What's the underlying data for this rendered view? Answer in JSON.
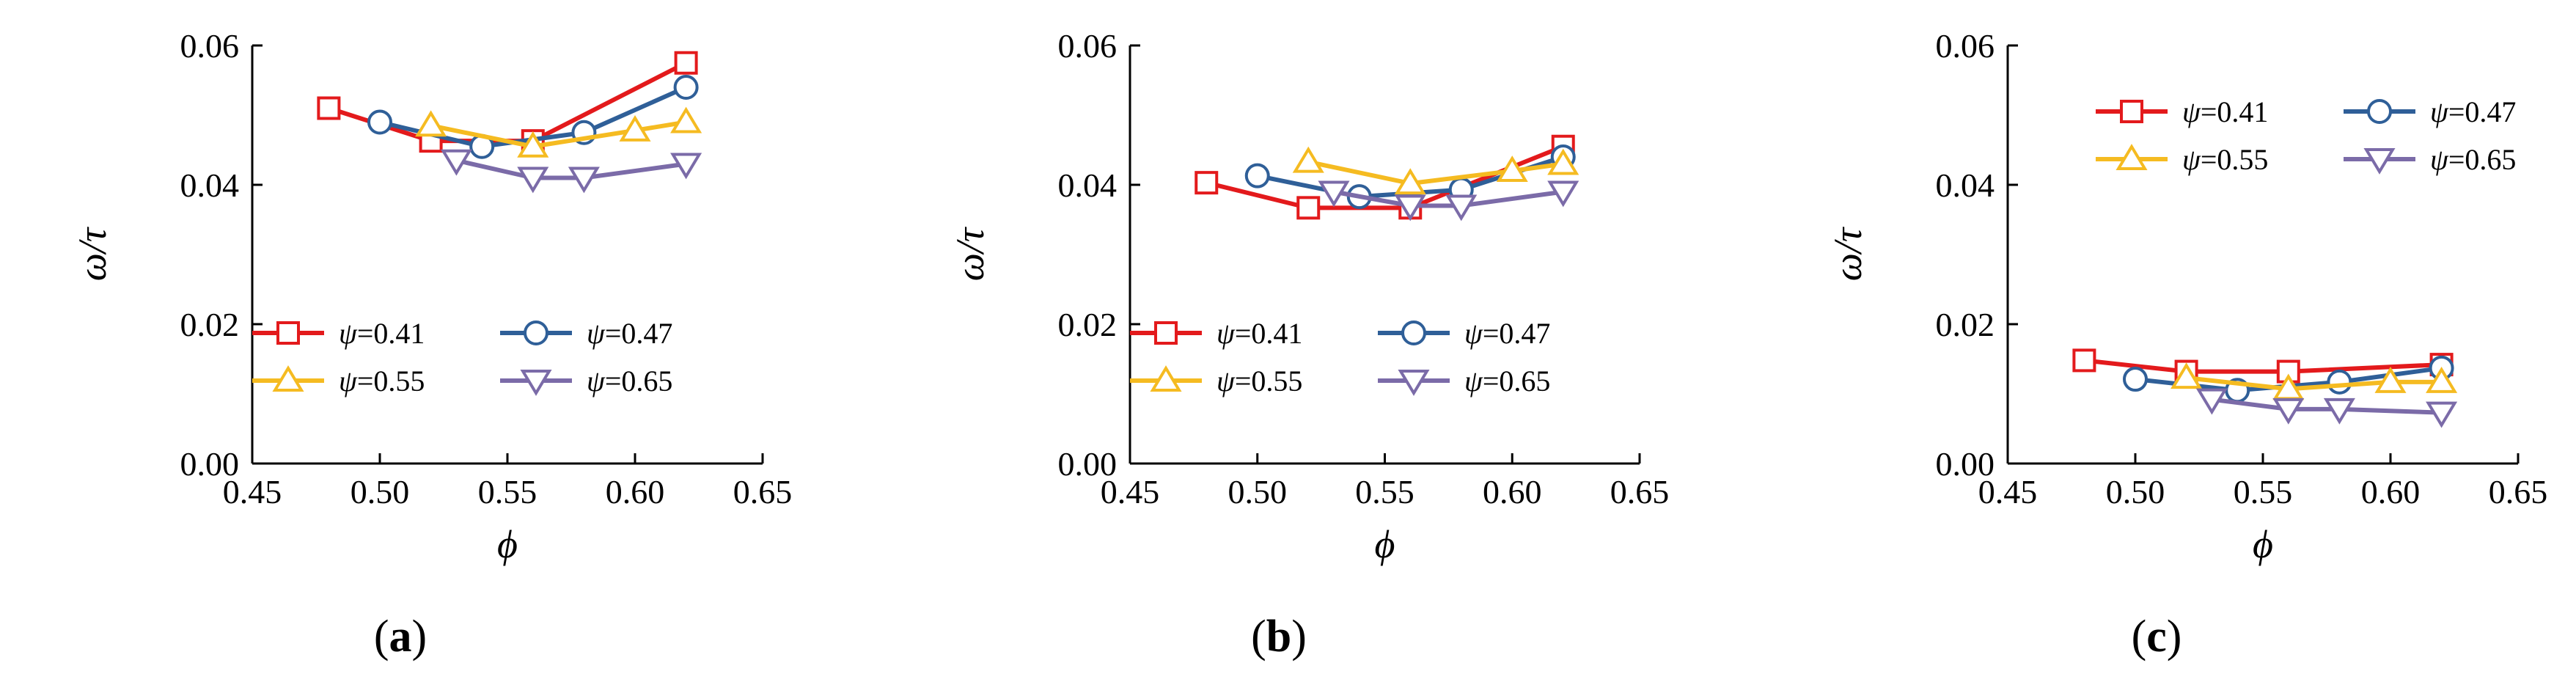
{
  "colors": {
    "psi_041": "#e31a1c",
    "psi_047": "#2f5f98",
    "psi_055": "#f5bb21",
    "psi_065": "#7b6ba8"
  },
  "chart_data": [
    {
      "type": "line",
      "panel": "a",
      "caption": {
        "open": "(",
        "letter": "a",
        "close": ")"
      },
      "xlabel": "ϕ",
      "ylabel": "ω/τ",
      "xlim": [
        0.45,
        0.65
      ],
      "ylim": [
        0.0,
        0.06
      ],
      "xticks": [
        "0.45",
        "0.50",
        "0.55",
        "0.60",
        "0.65"
      ],
      "yticks": [
        "0.00",
        "0.02",
        "0.04",
        "0.06"
      ],
      "legend_position": "bottom-left",
      "series": [
        {
          "name": "ψ=0.41",
          "symbol": "ψ",
          "value_text": "=0.41",
          "marker": "square",
          "color": "#e31a1c",
          "x": [
            0.48,
            0.52,
            0.56,
            0.62
          ],
          "y": [
            0.051,
            0.0463,
            0.0463,
            0.0575
          ]
        },
        {
          "name": "ψ=0.47",
          "symbol": "ψ",
          "value_text": "=0.47",
          "marker": "circle",
          "color": "#2f5f98",
          "x": [
            0.5,
            0.54,
            0.58,
            0.62
          ],
          "y": [
            0.049,
            0.0455,
            0.0475,
            0.054
          ]
        },
        {
          "name": "ψ=0.55",
          "symbol": "ψ",
          "value_text": "=0.55",
          "marker": "triangle-up",
          "color": "#f5bb21",
          "x": [
            0.52,
            0.56,
            0.6,
            0.62
          ],
          "y": [
            0.0485,
            0.0455,
            0.0478,
            0.049
          ]
        },
        {
          "name": "ψ=0.65",
          "symbol": "ψ",
          "value_text": "=0.65",
          "marker": "triangle-down",
          "color": "#7b6ba8",
          "x": [
            0.53,
            0.56,
            0.58,
            0.62
          ],
          "y": [
            0.0435,
            0.041,
            0.041,
            0.043
          ]
        }
      ]
    },
    {
      "type": "line",
      "panel": "b",
      "caption": {
        "open": "(",
        "letter": "b",
        "close": ")"
      },
      "xlabel": "ϕ",
      "ylabel": "ω/τ",
      "xlim": [
        0.45,
        0.65
      ],
      "ylim": [
        0.0,
        0.06
      ],
      "xticks": [
        "0.45",
        "0.50",
        "0.55",
        "0.60",
        "0.65"
      ],
      "yticks": [
        "0.00",
        "0.02",
        "0.04",
        "0.06"
      ],
      "legend_position": "bottom-left",
      "series": [
        {
          "name": "ψ=0.41",
          "symbol": "ψ",
          "value_text": "=0.41",
          "marker": "square",
          "color": "#e31a1c",
          "x": [
            0.48,
            0.52,
            0.56,
            0.62
          ],
          "y": [
            0.0403,
            0.0367,
            0.0367,
            0.0455
          ]
        },
        {
          "name": "ψ=0.47",
          "symbol": "ψ",
          "value_text": "=0.47",
          "marker": "circle",
          "color": "#2f5f98",
          "x": [
            0.5,
            0.54,
            0.58,
            0.62
          ],
          "y": [
            0.0413,
            0.0383,
            0.0393,
            0.044
          ]
        },
        {
          "name": "ψ=0.55",
          "symbol": "ψ",
          "value_text": "=0.55",
          "marker": "triangle-up",
          "color": "#f5bb21",
          "x": [
            0.52,
            0.56,
            0.6,
            0.62
          ],
          "y": [
            0.0433,
            0.0402,
            0.042,
            0.043
          ]
        },
        {
          "name": "ψ=0.65",
          "symbol": "ψ",
          "value_text": "=0.65",
          "marker": "triangle-down",
          "color": "#7b6ba8",
          "x": [
            0.53,
            0.56,
            0.58,
            0.62
          ],
          "y": [
            0.039,
            0.037,
            0.037,
            0.039
          ]
        }
      ]
    },
    {
      "type": "line",
      "panel": "c",
      "caption": {
        "open": "(",
        "letter": "c",
        "close": ")"
      },
      "xlabel": "ϕ",
      "ylabel": "ω/τ",
      "xlim": [
        0.45,
        0.65
      ],
      "ylim": [
        0.0,
        0.06
      ],
      "xticks": [
        "0.45",
        "0.50",
        "0.55",
        "0.60",
        "0.65"
      ],
      "yticks": [
        "0.00",
        "0.02",
        "0.04",
        "0.06"
      ],
      "legend_position": "top-right",
      "series": [
        {
          "name": "ψ=0.41",
          "symbol": "ψ",
          "value_text": "=0.41",
          "marker": "square",
          "color": "#e31a1c",
          "x": [
            0.48,
            0.52,
            0.56,
            0.62
          ],
          "y": [
            0.0148,
            0.0132,
            0.0132,
            0.0142
          ]
        },
        {
          "name": "ψ=0.47",
          "symbol": "ψ",
          "value_text": "=0.47",
          "marker": "circle",
          "color": "#2f5f98",
          "x": [
            0.5,
            0.54,
            0.58,
            0.62
          ],
          "y": [
            0.0121,
            0.0105,
            0.0117,
            0.0137
          ]
        },
        {
          "name": "ψ=0.55",
          "symbol": "ψ",
          "value_text": "=0.55",
          "marker": "triangle-up",
          "color": "#f5bb21",
          "x": [
            0.52,
            0.56,
            0.6,
            0.62
          ],
          "y": [
            0.0123,
            0.0107,
            0.0117,
            0.0117
          ]
        },
        {
          "name": "ψ=0.65",
          "symbol": "ψ",
          "value_text": "=0.65",
          "marker": "triangle-down",
          "color": "#7b6ba8",
          "x": [
            0.53,
            0.56,
            0.58,
            0.62
          ],
          "y": [
            0.0092,
            0.0078,
            0.0078,
            0.0073
          ]
        }
      ]
    }
  ]
}
